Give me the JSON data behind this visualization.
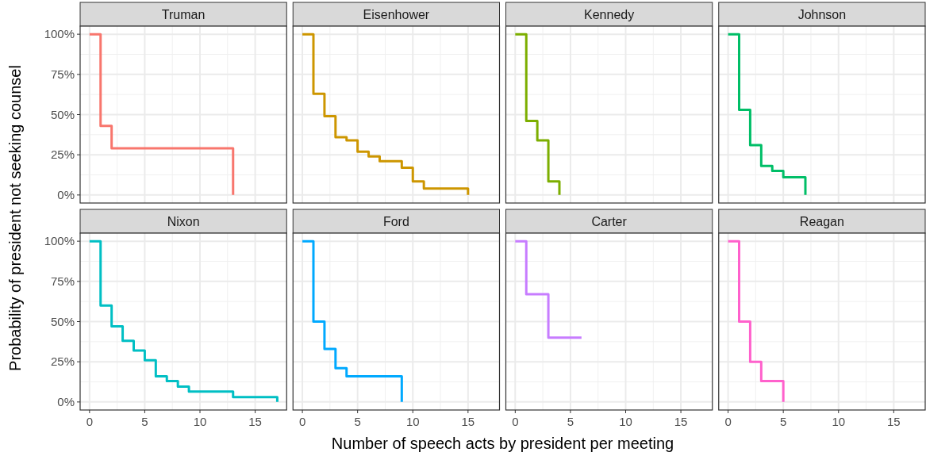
{
  "chart_data": [
    {
      "type": "step",
      "title": "Truman",
      "ylabel": "Probability of president not seeking counsel",
      "x": [
        0,
        1,
        2,
        13
      ],
      "series": [
        {
          "color": "#f8766d",
          "values": [
            100,
            43,
            29,
            0
          ]
        }
      ],
      "xlim": [
        -0.85,
        17.85
      ],
      "ylim": [
        -5,
        105
      ],
      "xticks": [
        0,
        5,
        10,
        15
      ],
      "yticks": [
        {
          "value": 0,
          "label": "0%"
        },
        {
          "value": 25,
          "label": "25%"
        },
        {
          "value": 50,
          "label": "50%"
        },
        {
          "value": 75,
          "label": "75%"
        },
        {
          "value": 100,
          "label": "100%"
        }
      ],
      "grid": true,
      "tick_labels": "y"
    },
    {
      "type": "step",
      "title": "Eisenhower",
      "x": [
        0,
        1,
        2,
        3,
        4,
        5,
        6,
        7,
        9,
        10,
        11,
        15
      ],
      "series": [
        {
          "color": "#cd9600",
          "values": [
            100,
            63,
            49,
            36,
            34,
            27,
            24,
            21,
            17,
            8.5,
            4,
            0
          ]
        }
      ],
      "xlim": [
        -0.85,
        17.85
      ],
      "ylim": [
        -5,
        105
      ],
      "xticks": [
        0,
        5,
        10,
        15
      ],
      "yticks": [
        {
          "value": 0,
          "label": null
        },
        {
          "value": 25,
          "label": null
        },
        {
          "value": 50,
          "label": null
        },
        {
          "value": 75,
          "label": null
        },
        {
          "value": 100,
          "label": null
        }
      ],
      "grid": true,
      "tick_labels": false
    },
    {
      "type": "step",
      "title": "Kennedy",
      "x": [
        0,
        1,
        2,
        3,
        4
      ],
      "series": [
        {
          "color": "#7cae00",
          "values": [
            100,
            46,
            34,
            8.5,
            0
          ]
        }
      ],
      "xlim": [
        -0.85,
        17.85
      ],
      "ylim": [
        -5,
        105
      ],
      "xticks": [
        0,
        5,
        10,
        15
      ],
      "yticks": [
        {
          "value": 0,
          "label": null
        },
        {
          "value": 25,
          "label": null
        },
        {
          "value": 50,
          "label": null
        },
        {
          "value": 75,
          "label": null
        },
        {
          "value": 100,
          "label": null
        }
      ],
      "grid": true,
      "tick_labels": false
    },
    {
      "type": "step",
      "title": "Johnson",
      "x": [
        0,
        1,
        2,
        3,
        4,
        5,
        7
      ],
      "series": [
        {
          "color": "#00be67",
          "values": [
            100,
            53,
            31,
            18,
            15,
            11,
            0
          ]
        }
      ],
      "xlim": [
        -0.85,
        17.85
      ],
      "ylim": [
        -5,
        105
      ],
      "xticks": [
        0,
        5,
        10,
        15
      ],
      "yticks": [
        {
          "value": 0,
          "label": null
        },
        {
          "value": 25,
          "label": null
        },
        {
          "value": 50,
          "label": null
        },
        {
          "value": 75,
          "label": null
        },
        {
          "value": 100,
          "label": null
        }
      ],
      "grid": true,
      "tick_labels": false
    },
    {
      "type": "step",
      "title": "Nixon",
      "x": [
        0,
        1,
        2,
        3,
        4,
        5,
        6,
        7,
        8,
        9,
        13,
        17
      ],
      "series": [
        {
          "color": "#00bfc4",
          "values": [
            100,
            60,
            47,
            38,
            32,
            26,
            16,
            13,
            9.5,
            6.5,
            3,
            0
          ]
        }
      ],
      "xlim": [
        -0.85,
        17.85
      ],
      "ylim": [
        -5,
        105
      ],
      "xticks": [
        0,
        5,
        10,
        15
      ],
      "yticks": [
        {
          "value": 0,
          "label": "0%"
        },
        {
          "value": 25,
          "label": "25%"
        },
        {
          "value": 50,
          "label": "50%"
        },
        {
          "value": 75,
          "label": "75%"
        },
        {
          "value": 100,
          "label": "100%"
        }
      ],
      "grid": true
    },
    {
      "type": "step",
      "title": "Ford",
      "xlabel": "Number of speech acts by president per meeting",
      "x": [
        0,
        1,
        2,
        3,
        4,
        9
      ],
      "series": [
        {
          "color": "#00a9ff",
          "values": [
            100,
            50,
            33,
            21,
            16,
            0
          ]
        }
      ],
      "xlim": [
        -0.85,
        17.85
      ],
      "ylim": [
        -5,
        105
      ],
      "xticks": [
        0,
        5,
        10,
        15
      ],
      "yticks": [
        {
          "value": 0,
          "label": null
        },
        {
          "value": 25,
          "label": null
        },
        {
          "value": 50,
          "label": null
        },
        {
          "value": 75,
          "label": null
        },
        {
          "value": 100,
          "label": null
        }
      ],
      "grid": true,
      "tick_labels": "x"
    },
    {
      "type": "step",
      "title": "Carter",
      "x": [
        0,
        1,
        3,
        6
      ],
      "series": [
        {
          "color": "#c77cff",
          "values": [
            100,
            67,
            40,
            40
          ]
        }
      ],
      "xlim": [
        -0.85,
        17.85
      ],
      "ylim": [
        -5,
        105
      ],
      "xticks": [
        0,
        5,
        10,
        15
      ],
      "yticks": [
        {
          "value": 0,
          "label": null
        },
        {
          "value": 25,
          "label": null
        },
        {
          "value": 50,
          "label": null
        },
        {
          "value": 75,
          "label": null
        },
        {
          "value": 100,
          "label": null
        }
      ],
      "grid": true,
      "tick_labels": "x"
    },
    {
      "type": "step",
      "title": "Reagan",
      "x": [
        0,
        1,
        2,
        3,
        5
      ],
      "series": [
        {
          "color": "#ff61cc",
          "values": [
            100,
            50,
            25,
            13,
            0
          ]
        }
      ],
      "xlim": [
        -0.85,
        17.85
      ],
      "ylim": [
        -5,
        105
      ],
      "xticks": [
        0,
        5,
        10,
        15
      ],
      "yticks": [
        {
          "value": 0,
          "label": null
        },
        {
          "value": 25,
          "label": null
        },
        {
          "value": 50,
          "label": null
        },
        {
          "value": 75,
          "label": null
        },
        {
          "value": 100,
          "label": null
        }
      ],
      "grid": true,
      "tick_labels": "x"
    }
  ]
}
